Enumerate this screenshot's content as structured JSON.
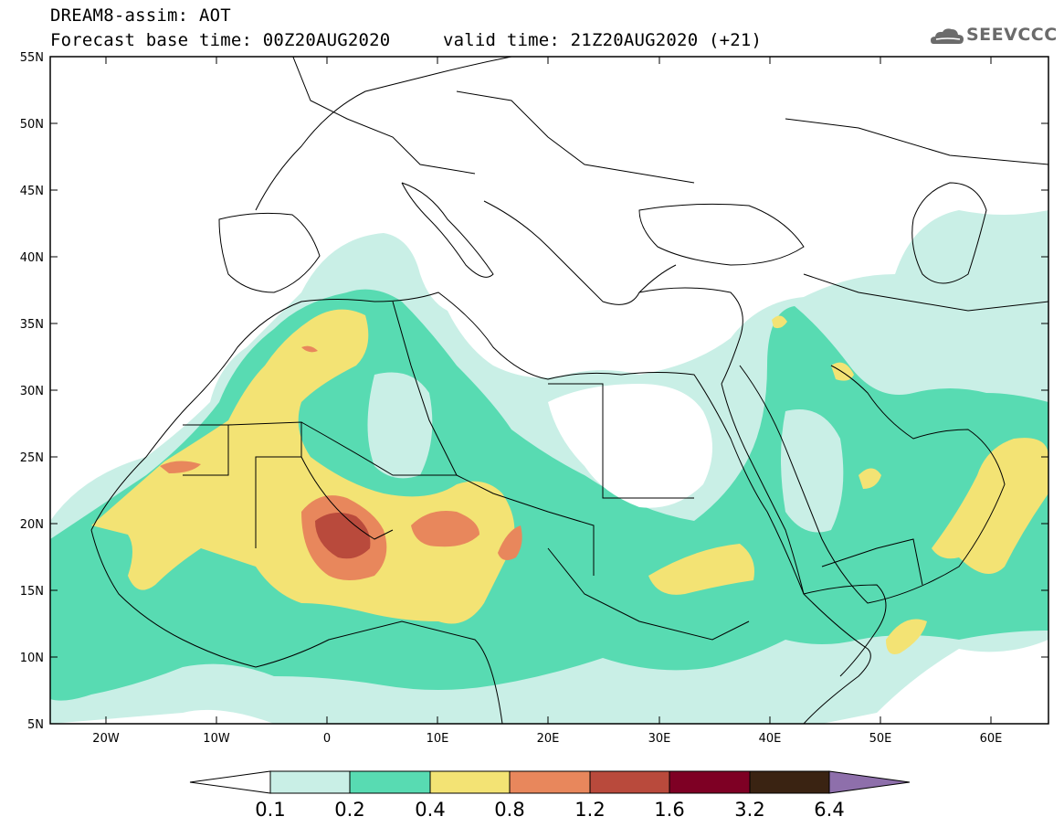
{
  "header": {
    "title": "DREAM8-assim: AOT",
    "base_time": "Forecast base time: 00Z20AUG2020",
    "valid_time": "valid time: 21Z20AUG2020 (+21)",
    "logo_text": "SEEVCCC"
  },
  "axes": {
    "lat_ticks": [
      "55N",
      "50N",
      "45N",
      "40N",
      "35N",
      "30N",
      "25N",
      "20N",
      "15N",
      "10N",
      "5N"
    ],
    "lon_ticks": [
      "20W",
      "10W",
      "0",
      "10E",
      "20E",
      "30E",
      "40E",
      "50E",
      "60E"
    ],
    "lat_range": [
      5,
      55
    ],
    "lon_range": [
      -25,
      65
    ]
  },
  "colorbar": {
    "labels": [
      "0.1",
      "0.2",
      "0.4",
      "0.8",
      "1.2",
      "1.6",
      "3.2",
      "6.4"
    ],
    "colors": [
      "#ffffff",
      "#c9efe6",
      "#58dbb2",
      "#f3e374",
      "#e8875c",
      "#b94a3c",
      "#7e0024",
      "#3a2312",
      "#8e6fab"
    ]
  },
  "colors": {
    "very_low": "#c9efe6",
    "low": "#58dbb2",
    "moderate": "#f3e374",
    "high": "#e8875c",
    "very_high": "#b94a3c"
  }
}
